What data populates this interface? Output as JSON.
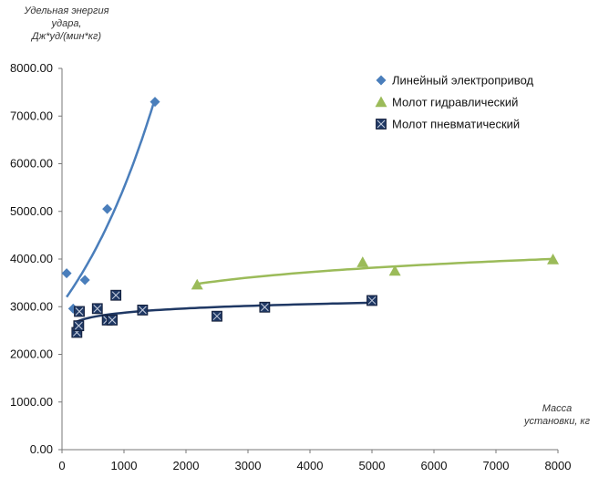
{
  "chart_data": {
    "type": "scatter",
    "ylabel_lines": [
      "Удельная энергия",
      "удара,",
      "Дж*уд/(мин*кг)"
    ],
    "xlabel_lines": [
      "Масса",
      "установки, кг"
    ],
    "xlim": [
      0,
      8000
    ],
    "ylim": [
      0,
      8000
    ],
    "x_ticks": [
      "0",
      "1000",
      "2000",
      "3000",
      "4000",
      "5000",
      "6000",
      "7000",
      "8000"
    ],
    "y_ticks": [
      "0.00",
      "1000.00",
      "2000.00",
      "3000.00",
      "4000.00",
      "5000.00",
      "6000.00",
      "7000.00",
      "8000.00"
    ],
    "legend_position": "top-right",
    "series": [
      {
        "name": "Линейный электропривод",
        "marker": "diamond",
        "color": "#4a7ebb",
        "points": [
          [
            75,
            3700
          ],
          [
            180,
            2960
          ],
          [
            370,
            3560
          ],
          [
            730,
            5050
          ],
          [
            1500,
            7300
          ]
        ],
        "trendline": "exponential",
        "trend_x_range": [
          75,
          1500
        ]
      },
      {
        "name": "Молот гидравлический",
        "marker": "triangle",
        "color": "#9bbb59",
        "points": [
          [
            2180,
            3460
          ],
          [
            4850,
            3930
          ],
          [
            5370,
            3750
          ],
          [
            7920,
            3990
          ]
        ],
        "trendline": "logarithmic",
        "trend_x_range": [
          2180,
          7920
        ]
      },
      {
        "name": "Молот пневматический",
        "marker": "square-x",
        "color": "#1f3864",
        "points": [
          [
            240,
            2460
          ],
          [
            270,
            2600
          ],
          [
            280,
            2900
          ],
          [
            570,
            2960
          ],
          [
            730,
            2720
          ],
          [
            810,
            2720
          ],
          [
            870,
            3240
          ],
          [
            1300,
            2930
          ],
          [
            2500,
            2800
          ],
          [
            3270,
            2990
          ],
          [
            5000,
            3130
          ]
        ],
        "trendline": "logarithmic",
        "trend_x_range": [
          240,
          5000
        ]
      }
    ]
  }
}
